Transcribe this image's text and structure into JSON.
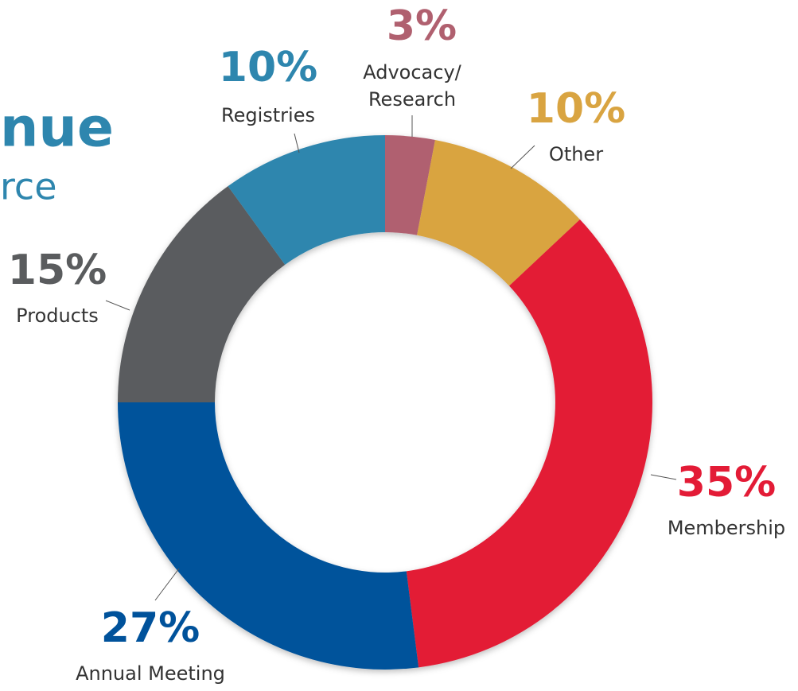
{
  "chart_data": {
    "type": "pie",
    "title": "nue",
    "subtitle": "rce",
    "categories": [
      "Advocacy/\nResearch",
      "Other",
      "Membership",
      "Annual Meeting",
      "Products",
      "Registries"
    ],
    "values": [
      3,
      10,
      35,
      27,
      15,
      10
    ],
    "value_labels": [
      "3%",
      "10%",
      "35%",
      "27%",
      "15%",
      "10%"
    ],
    "colors": [
      "#b0606f",
      "#d9a441",
      "#e31b36",
      "#00529b",
      "#5a5c5e",
      "#2e86ae"
    ]
  }
}
